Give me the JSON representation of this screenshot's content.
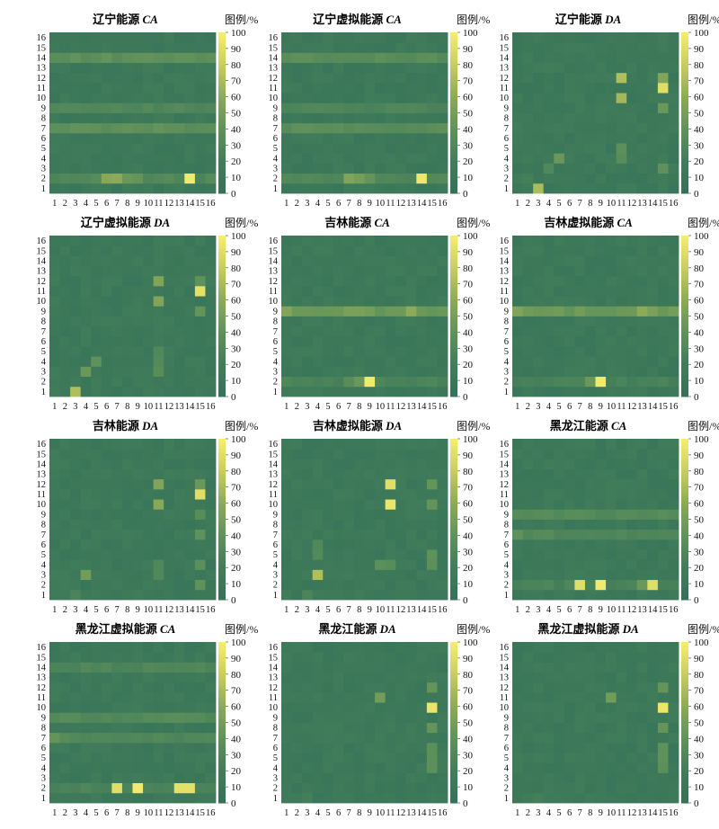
{
  "legend_label": "图例/%",
  "chart_data": [
    {
      "type": "heatmap",
      "title": "辽宁能源",
      "title_suffix": "CA",
      "x": [
        1,
        2,
        3,
        4,
        5,
        6,
        7,
        8,
        9,
        10,
        11,
        12,
        13,
        14,
        15,
        16
      ],
      "y": [
        1,
        2,
        3,
        4,
        5,
        6,
        7,
        8,
        9,
        10,
        11,
        12,
        13,
        14,
        15,
        16
      ],
      "zlim": [
        0,
        100
      ],
      "colorbar_ticks": [
        0,
        10,
        20,
        30,
        40,
        50,
        60,
        70,
        80,
        90,
        100
      ],
      "highlight_rows": {
        "14": 38,
        "9": 30,
        "7": 38,
        "2": 30
      },
      "cells": [
        [
          2,
          6,
          58
        ],
        [
          2,
          7,
          60
        ],
        [
          2,
          14,
          98
        ],
        [
          2,
          8,
          45
        ],
        [
          2,
          9,
          42
        ]
      ]
    },
    {
      "type": "heatmap",
      "title": "辽宁虚拟能源",
      "title_suffix": "CA",
      "x": [
        1,
        2,
        3,
        4,
        5,
        6,
        7,
        8,
        9,
        10,
        11,
        12,
        13,
        14,
        15,
        16
      ],
      "y": [
        1,
        2,
        3,
        4,
        5,
        6,
        7,
        8,
        9,
        10,
        11,
        12,
        13,
        14,
        15,
        16
      ],
      "zlim": [
        0,
        100
      ],
      "colorbar_ticks": [
        0,
        10,
        20,
        30,
        40,
        50,
        60,
        70,
        80,
        90,
        100
      ],
      "highlight_rows": {
        "14": 36,
        "9": 28,
        "7": 36,
        "2": 30
      },
      "cells": [
        [
          2,
          7,
          55
        ],
        [
          2,
          8,
          50
        ],
        [
          2,
          14,
          96
        ],
        [
          2,
          9,
          42
        ]
      ]
    },
    {
      "type": "heatmap",
      "title": "辽宁能源",
      "title_suffix": "DA",
      "x": [
        1,
        2,
        3,
        4,
        5,
        6,
        7,
        8,
        9,
        10,
        11,
        12,
        13,
        14,
        15,
        16
      ],
      "y": [
        1,
        2,
        3,
        4,
        5,
        6,
        7,
        8,
        9,
        10,
        11,
        12,
        13,
        14,
        15,
        16
      ],
      "zlim": [
        0,
        100
      ],
      "colorbar_ticks": [
        0,
        10,
        20,
        30,
        40,
        50,
        60,
        70,
        80,
        90,
        100
      ],
      "highlight_rows": {},
      "cells": [
        [
          1,
          3,
          70
        ],
        [
          4,
          5,
          45
        ],
        [
          3,
          4,
          30
        ],
        [
          12,
          11,
          72
        ],
        [
          10,
          11,
          68
        ],
        [
          11,
          15,
          90
        ],
        [
          12,
          15,
          55
        ],
        [
          9,
          15,
          45
        ],
        [
          4,
          11,
          35
        ],
        [
          5,
          11,
          38
        ],
        [
          3,
          15,
          40
        ],
        [
          2,
          2,
          22
        ],
        [
          7,
          1,
          20
        ],
        [
          13,
          4,
          20
        ],
        [
          13,
          5,
          18
        ],
        [
          8,
          6,
          18
        ]
      ]
    },
    {
      "type": "heatmap",
      "title": "辽宁虚拟能源",
      "title_suffix": "DA",
      "x": [
        1,
        2,
        3,
        4,
        5,
        6,
        7,
        8,
        9,
        10,
        11,
        12,
        13,
        14,
        15,
        16
      ],
      "y": [
        1,
        2,
        3,
        4,
        5,
        6,
        7,
        8,
        9,
        10,
        11,
        12,
        13,
        14,
        15,
        16
      ],
      "zlim": [
        0,
        100
      ],
      "colorbar_ticks": [
        0,
        10,
        20,
        30,
        40,
        50,
        60,
        70,
        80,
        90,
        100
      ],
      "highlight_rows": {},
      "cells": [
        [
          1,
          3,
          72
        ],
        [
          3,
          4,
          45
        ],
        [
          4,
          5,
          40
        ],
        [
          12,
          11,
          55
        ],
        [
          10,
          11,
          55
        ],
        [
          11,
          15,
          92
        ],
        [
          12,
          15,
          40
        ],
        [
          9,
          15,
          42
        ],
        [
          3,
          11,
          35
        ],
        [
          4,
          11,
          32
        ],
        [
          5,
          11,
          30
        ],
        [
          7,
          4,
          18
        ],
        [
          6,
          4,
          18
        ]
      ]
    },
    {
      "type": "heatmap",
      "title": "吉林能源",
      "title_suffix": "CA",
      "x": [
        1,
        2,
        3,
        4,
        5,
        6,
        7,
        8,
        9,
        10,
        11,
        12,
        13,
        14,
        15,
        16
      ],
      "y": [
        1,
        2,
        3,
        4,
        5,
        6,
        7,
        8,
        9,
        10,
        11,
        12,
        13,
        14,
        15,
        16
      ],
      "zlim": [
        0,
        100
      ],
      "colorbar_ticks": [
        0,
        10,
        20,
        30,
        40,
        50,
        60,
        70,
        80,
        90,
        100
      ],
      "highlight_rows": {
        "9": 45,
        "2": 26
      },
      "cells": [
        [
          9,
          1,
          55
        ],
        [
          9,
          13,
          60
        ],
        [
          9,
          7,
          52
        ],
        [
          9,
          8,
          52
        ],
        [
          2,
          9,
          98
        ],
        [
          2,
          8,
          45
        ],
        [
          2,
          7,
          35
        ]
      ]
    },
    {
      "type": "heatmap",
      "title": "吉林虚拟能源",
      "title_suffix": "CA",
      "x": [
        1,
        2,
        3,
        4,
        5,
        6,
        7,
        8,
        9,
        10,
        11,
        12,
        13,
        14,
        15,
        16
      ],
      "y": [
        1,
        2,
        3,
        4,
        5,
        6,
        7,
        8,
        9,
        10,
        11,
        12,
        13,
        14,
        15,
        16
      ],
      "zlim": [
        0,
        100
      ],
      "colorbar_ticks": [
        0,
        10,
        20,
        30,
        40,
        50,
        60,
        70,
        80,
        90,
        100
      ],
      "highlight_rows": {
        "9": 45,
        "2": 24
      },
      "cells": [
        [
          9,
          1,
          55
        ],
        [
          9,
          13,
          60
        ],
        [
          9,
          14,
          52
        ],
        [
          2,
          9,
          98
        ],
        [
          2,
          8,
          45
        ]
      ]
    },
    {
      "type": "heatmap",
      "title": "吉林能源",
      "title_suffix": "DA",
      "x": [
        1,
        2,
        3,
        4,
        5,
        6,
        7,
        8,
        9,
        10,
        11,
        12,
        13,
        14,
        15,
        16
      ],
      "y": [
        1,
        2,
        3,
        4,
        5,
        6,
        7,
        8,
        9,
        10,
        11,
        12,
        13,
        14,
        15,
        16
      ],
      "zlim": [
        0,
        100
      ],
      "colorbar_ticks": [
        0,
        10,
        20,
        30,
        40,
        50,
        60,
        70,
        80,
        90,
        100
      ],
      "highlight_rows": {},
      "cells": [
        [
          3,
          4,
          48
        ],
        [
          12,
          11,
          55
        ],
        [
          10,
          11,
          58
        ],
        [
          11,
          15,
          90
        ],
        [
          12,
          15,
          45
        ],
        [
          9,
          15,
          35
        ],
        [
          7,
          15,
          40
        ],
        [
          4,
          15,
          38
        ],
        [
          2,
          15,
          40
        ],
        [
          3,
          11,
          30
        ],
        [
          4,
          11,
          30
        ],
        [
          1,
          3,
          26
        ]
      ]
    },
    {
      "type": "heatmap",
      "title": "吉林虚拟能源",
      "title_suffix": "DA",
      "x": [
        1,
        2,
        3,
        4,
        5,
        6,
        7,
        8,
        9,
        10,
        11,
        12,
        13,
        14,
        15,
        16
      ],
      "y": [
        1,
        2,
        3,
        4,
        5,
        6,
        7,
        8,
        9,
        10,
        11,
        12,
        13,
        14,
        15,
        16
      ],
      "zlim": [
        0,
        100
      ],
      "colorbar_ticks": [
        0,
        10,
        20,
        30,
        40,
        50,
        60,
        70,
        80,
        90,
        100
      ],
      "highlight_rows": {},
      "cells": [
        [
          3,
          4,
          72
        ],
        [
          12,
          11,
          90
        ],
        [
          10,
          11,
          95
        ],
        [
          10,
          15,
          42
        ],
        [
          12,
          15,
          42
        ],
        [
          4,
          10,
          38
        ],
        [
          4,
          11,
          35
        ],
        [
          5,
          15,
          40
        ],
        [
          4,
          15,
          38
        ],
        [
          5,
          4,
          32
        ],
        [
          6,
          4,
          30
        ],
        [
          1,
          3,
          26
        ]
      ]
    },
    {
      "type": "heatmap",
      "title": "黑龙江能源",
      "title_suffix": "CA",
      "x": [
        1,
        2,
        3,
        4,
        5,
        6,
        7,
        8,
        9,
        10,
        11,
        12,
        13,
        14,
        15,
        16
      ],
      "y": [
        1,
        2,
        3,
        4,
        5,
        6,
        7,
        8,
        9,
        10,
        11,
        12,
        13,
        14,
        15,
        16
      ],
      "zlim": [
        0,
        100
      ],
      "colorbar_ticks": [
        0,
        10,
        20,
        30,
        40,
        50,
        60,
        70,
        80,
        90,
        100
      ],
      "highlight_rows": {
        "9": 32,
        "7": 30,
        "2": 26
      },
      "cells": [
        [
          7,
          1,
          40
        ],
        [
          2,
          7,
          90
        ],
        [
          2,
          9,
          98
        ],
        [
          2,
          14,
          90
        ],
        [
          2,
          13,
          45
        ]
      ]
    },
    {
      "type": "heatmap",
      "title": "黑龙江虚拟能源",
      "title_suffix": "CA",
      "x": [
        1,
        2,
        3,
        4,
        5,
        6,
        7,
        8,
        9,
        10,
        11,
        12,
        13,
        14,
        15,
        16
      ],
      "y": [
        1,
        2,
        3,
        4,
        5,
        6,
        7,
        8,
        9,
        10,
        11,
        12,
        13,
        14,
        15,
        16
      ],
      "zlim": [
        0,
        100
      ],
      "colorbar_ticks": [
        0,
        10,
        20,
        30,
        40,
        50,
        60,
        70,
        80,
        90,
        100
      ],
      "highlight_rows": {
        "14": 28,
        "9": 32,
        "7": 30,
        "2": 26
      },
      "cells": [
        [
          7,
          1,
          42
        ],
        [
          2,
          7,
          90
        ],
        [
          2,
          9,
          98
        ],
        [
          2,
          13,
          92
        ],
        [
          2,
          14,
          92
        ]
      ]
    },
    {
      "type": "heatmap",
      "title": "黑龙江能源",
      "title_suffix": "DA",
      "x": [
        1,
        2,
        3,
        4,
        5,
        6,
        7,
        8,
        9,
        10,
        11,
        12,
        13,
        14,
        15,
        16
      ],
      "y": [
        1,
        2,
        3,
        4,
        5,
        6,
        7,
        8,
        9,
        10,
        11,
        12,
        13,
        14,
        15,
        16
      ],
      "zlim": [
        0,
        100
      ],
      "colorbar_ticks": [
        0,
        10,
        20,
        30,
        40,
        50,
        60,
        70,
        80,
        90,
        100
      ],
      "highlight_rows": {},
      "cells": [
        [
          10,
          15,
          95
        ],
        [
          11,
          10,
          48
        ],
        [
          12,
          15,
          42
        ],
        [
          8,
          15,
          42
        ],
        [
          6,
          15,
          38
        ],
        [
          5,
          15,
          38
        ],
        [
          4,
          15,
          38
        ],
        [
          1,
          3,
          22
        ]
      ]
    },
    {
      "type": "heatmap",
      "title": "黑龙江虚拟能源",
      "title_suffix": "DA",
      "x": [
        1,
        2,
        3,
        4,
        5,
        6,
        7,
        8,
        9,
        10,
        11,
        12,
        13,
        14,
        15,
        16
      ],
      "y": [
        1,
        2,
        3,
        4,
        5,
        6,
        7,
        8,
        9,
        10,
        11,
        12,
        13,
        14,
        15,
        16
      ],
      "zlim": [
        0,
        100
      ],
      "colorbar_ticks": [
        0,
        10,
        20,
        30,
        40,
        50,
        60,
        70,
        80,
        90,
        100
      ],
      "highlight_rows": {},
      "cells": [
        [
          10,
          15,
          95
        ],
        [
          11,
          10,
          48
        ],
        [
          12,
          15,
          42
        ],
        [
          8,
          15,
          42
        ],
        [
          6,
          15,
          40
        ],
        [
          5,
          15,
          40
        ],
        [
          4,
          15,
          38
        ],
        [
          1,
          3,
          22
        ]
      ]
    }
  ]
}
